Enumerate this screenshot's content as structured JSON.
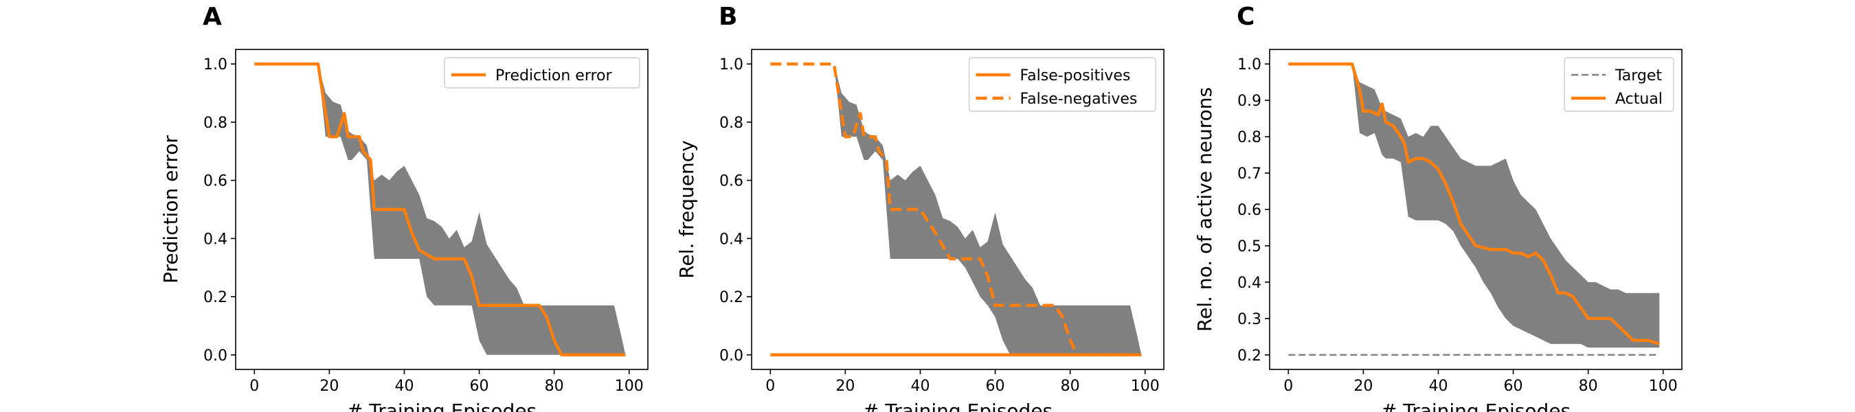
{
  "colors": {
    "line": "#ff7f0e",
    "band": "#808080",
    "target": "#7f7f7f"
  },
  "chart_data": [
    {
      "panel": "A",
      "type": "line",
      "xlabel": "# Training Episodes",
      "ylabel": "Prediction error",
      "xlim": [
        -5,
        105
      ],
      "ylim": [
        -0.05,
        1.05
      ],
      "xticks": [
        "0",
        "20",
        "40",
        "60",
        "80",
        "100"
      ],
      "yticks": [
        "0.0",
        "0.2",
        "0.4",
        "0.6",
        "0.8",
        "1.0"
      ],
      "legend": "top-right",
      "band": {
        "x": [
          0,
          17,
          19,
          21,
          23,
          25,
          26,
          28,
          30,
          32,
          34,
          36,
          38,
          40,
          42,
          44,
          46,
          48,
          50,
          52,
          54,
          56,
          58,
          60,
          62,
          64,
          66,
          68,
          70,
          72,
          74,
          76,
          78,
          80,
          82,
          84,
          86,
          88,
          90,
          92,
          94,
          96,
          98,
          99
        ],
        "upper": [
          1.0,
          1.0,
          0.9,
          0.87,
          0.86,
          0.77,
          0.76,
          0.75,
          0.72,
          0.6,
          0.62,
          0.6,
          0.63,
          0.65,
          0.6,
          0.55,
          0.47,
          0.46,
          0.44,
          0.4,
          0.43,
          0.37,
          0.39,
          0.49,
          0.38,
          0.34,
          0.3,
          0.26,
          0.23,
          0.17,
          0.17,
          0.17,
          0.17,
          0.17,
          0.17,
          0.17,
          0.17,
          0.17,
          0.17,
          0.17,
          0.17,
          0.17,
          0.06,
          0.0
        ],
        "lower": [
          1.0,
          1.0,
          0.75,
          0.75,
          0.75,
          0.67,
          0.67,
          0.7,
          0.67,
          0.33,
          0.33,
          0.33,
          0.33,
          0.33,
          0.33,
          0.33,
          0.2,
          0.17,
          0.17,
          0.17,
          0.17,
          0.17,
          0.17,
          0.05,
          0.0,
          0.0,
          0.0,
          0.0,
          0.0,
          0.0,
          0.0,
          0.0,
          0.0,
          0.0,
          0.0,
          0.0,
          0.0,
          0.0,
          0.0,
          0.0,
          0.0,
          0.0,
          0.0,
          0.0
        ]
      },
      "series": [
        {
          "name": "Prediction error",
          "style": "solid",
          "x": [
            0,
            17,
            19,
            20,
            22,
            24,
            25,
            26,
            28,
            29,
            31,
            32,
            36,
            40,
            42,
            44,
            48,
            52,
            56,
            58,
            60,
            64,
            68,
            72,
            76,
            78,
            80,
            82,
            86,
            90,
            94,
            99
          ],
          "y": [
            1.0,
            1.0,
            0.83,
            0.75,
            0.75,
            0.83,
            0.75,
            0.75,
            0.75,
            0.7,
            0.67,
            0.5,
            0.5,
            0.5,
            0.42,
            0.36,
            0.33,
            0.33,
            0.33,
            0.27,
            0.17,
            0.17,
            0.17,
            0.17,
            0.17,
            0.13,
            0.05,
            0.0,
            0.0,
            0.0,
            0.0,
            0.0
          ]
        }
      ]
    },
    {
      "panel": "B",
      "type": "line",
      "xlabel": "# Training Episodes",
      "ylabel": "Rel. frequency",
      "xlim": [
        -5,
        105
      ],
      "ylim": [
        -0.05,
        1.05
      ],
      "xticks": [
        "0",
        "20",
        "40",
        "60",
        "80",
        "100"
      ],
      "yticks": [
        "0.0",
        "0.2",
        "0.4",
        "0.6",
        "0.8",
        "1.0"
      ],
      "legend": "top-right",
      "band": {
        "x": [
          0,
          17,
          19,
          21,
          23,
          25,
          26,
          28,
          30,
          32,
          34,
          36,
          38,
          40,
          42,
          44,
          46,
          48,
          50,
          52,
          54,
          56,
          58,
          60,
          62,
          64,
          66,
          68,
          70,
          72,
          74,
          76,
          78,
          80,
          82,
          84,
          86,
          88,
          90,
          92,
          94,
          96,
          98,
          99
        ],
        "upper": [
          1.0,
          1.0,
          0.9,
          0.87,
          0.86,
          0.77,
          0.76,
          0.75,
          0.72,
          0.6,
          0.62,
          0.6,
          0.63,
          0.65,
          0.6,
          0.55,
          0.47,
          0.46,
          0.44,
          0.4,
          0.43,
          0.37,
          0.39,
          0.49,
          0.38,
          0.34,
          0.3,
          0.26,
          0.23,
          0.17,
          0.17,
          0.17,
          0.17,
          0.17,
          0.17,
          0.17,
          0.17,
          0.17,
          0.17,
          0.17,
          0.17,
          0.17,
          0.06,
          0.0
        ],
        "lower": [
          1.0,
          1.0,
          0.75,
          0.75,
          0.75,
          0.67,
          0.67,
          0.7,
          0.67,
          0.33,
          0.33,
          0.33,
          0.33,
          0.33,
          0.33,
          0.33,
          0.33,
          0.33,
          0.33,
          0.3,
          0.25,
          0.2,
          0.17,
          0.13,
          0.05,
          0.0,
          0.0,
          0.0,
          0.0,
          0.0,
          0.0,
          0.0,
          0.0,
          0.0,
          0.0,
          0.0,
          0.0,
          0.0,
          0.0,
          0.0,
          0.0,
          0.0,
          0.0,
          0.0
        ]
      },
      "series": [
        {
          "name": "False-positives",
          "style": "solid",
          "x": [
            0,
            99
          ],
          "y": [
            0.0,
            0.0
          ]
        },
        {
          "name": "False-negatives",
          "style": "dashed",
          "x": [
            0,
            17,
            19,
            20,
            22,
            24,
            25,
            26,
            28,
            29,
            31,
            32,
            36,
            40,
            44,
            48,
            52,
            56,
            58,
            60,
            64,
            68,
            72,
            76,
            78,
            80,
            82,
            86,
            90,
            94,
            99
          ],
          "y": [
            1.0,
            1.0,
            0.83,
            0.75,
            0.75,
            0.83,
            0.75,
            0.75,
            0.75,
            0.7,
            0.67,
            0.5,
            0.5,
            0.5,
            0.42,
            0.33,
            0.33,
            0.33,
            0.27,
            0.17,
            0.17,
            0.17,
            0.17,
            0.17,
            0.13,
            0.05,
            0.0,
            0.0,
            0.0,
            0.0,
            0.0
          ]
        }
      ]
    },
    {
      "panel": "C",
      "type": "line",
      "xlabel": "# Training Episodes",
      "ylabel": "Rel. no. of active neurons",
      "xlim": [
        -5,
        105
      ],
      "ylim": [
        0.16,
        1.04
      ],
      "xticks": [
        "0",
        "20",
        "40",
        "60",
        "80",
        "100"
      ],
      "yticks": [
        "0.2",
        "0.3",
        "0.4",
        "0.5",
        "0.6",
        "0.7",
        "0.8",
        "0.9",
        "1.0"
      ],
      "legend": "top-right",
      "band": {
        "x": [
          0,
          17,
          19,
          21,
          23,
          25,
          26,
          28,
          30,
          32,
          34,
          36,
          38,
          40,
          42,
          44,
          46,
          48,
          50,
          52,
          54,
          56,
          58,
          60,
          62,
          64,
          66,
          68,
          70,
          72,
          74,
          76,
          78,
          80,
          82,
          84,
          86,
          88,
          90,
          92,
          94,
          96,
          98,
          99
        ],
        "upper": [
          1.0,
          1.0,
          0.95,
          0.94,
          0.93,
          0.88,
          0.87,
          0.86,
          0.85,
          0.8,
          0.81,
          0.8,
          0.83,
          0.83,
          0.8,
          0.77,
          0.74,
          0.73,
          0.72,
          0.72,
          0.72,
          0.73,
          0.74,
          0.68,
          0.64,
          0.62,
          0.6,
          0.56,
          0.52,
          0.49,
          0.46,
          0.44,
          0.42,
          0.4,
          0.4,
          0.39,
          0.38,
          0.38,
          0.37,
          0.37,
          0.37,
          0.37,
          0.37,
          0.37
        ],
        "lower": [
          1.0,
          1.0,
          0.81,
          0.8,
          0.81,
          0.75,
          0.74,
          0.74,
          0.73,
          0.58,
          0.57,
          0.57,
          0.57,
          0.57,
          0.56,
          0.54,
          0.5,
          0.47,
          0.44,
          0.4,
          0.37,
          0.33,
          0.3,
          0.28,
          0.27,
          0.26,
          0.25,
          0.24,
          0.23,
          0.23,
          0.23,
          0.23,
          0.23,
          0.22,
          0.22,
          0.22,
          0.22,
          0.22,
          0.22,
          0.22,
          0.22,
          0.22,
          0.22,
          0.22
        ]
      },
      "series": [
        {
          "name": "Target",
          "style": "dashed-thin",
          "x": [
            0,
            99
          ],
          "y": [
            0.2,
            0.2
          ]
        },
        {
          "name": "Actual",
          "style": "solid",
          "x": [
            0,
            17,
            19,
            20,
            22,
            24,
            25,
            26,
            28,
            30,
            31,
            32,
            34,
            36,
            38,
            40,
            42,
            44,
            46,
            48,
            50,
            54,
            56,
            58,
            60,
            62,
            64,
            66,
            68,
            70,
            72,
            74,
            76,
            78,
            80,
            84,
            86,
            88,
            90,
            92,
            96,
            99
          ],
          "y": [
            1.0,
            1.0,
            0.93,
            0.87,
            0.87,
            0.86,
            0.89,
            0.84,
            0.83,
            0.8,
            0.78,
            0.73,
            0.74,
            0.74,
            0.73,
            0.71,
            0.67,
            0.62,
            0.56,
            0.53,
            0.5,
            0.49,
            0.49,
            0.49,
            0.48,
            0.48,
            0.47,
            0.48,
            0.46,
            0.42,
            0.37,
            0.37,
            0.36,
            0.33,
            0.3,
            0.3,
            0.3,
            0.28,
            0.26,
            0.24,
            0.24,
            0.23
          ]
        }
      ]
    }
  ]
}
